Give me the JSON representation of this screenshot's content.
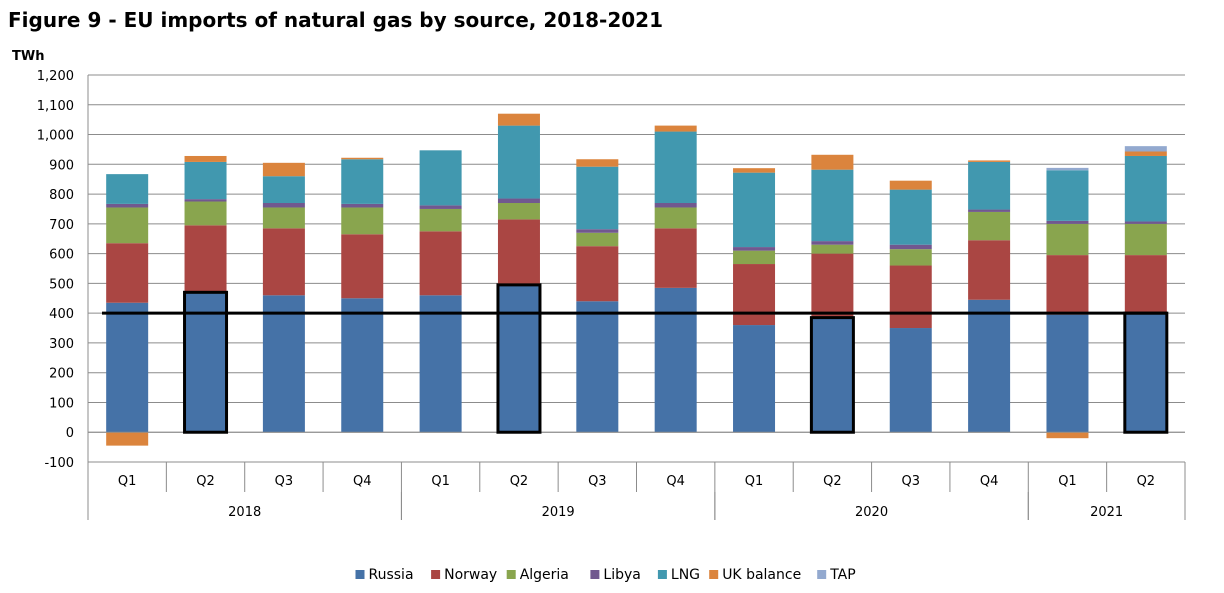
{
  "chart_data": {
    "type": "bar",
    "stacked": true,
    "title": "Figure 9 - EU imports of natural gas by source, 2018-2021",
    "ylabel": "TWh",
    "xlabel": "",
    "ylim": [
      -100,
      1200
    ],
    "yticks": [
      -100,
      0,
      100,
      200,
      300,
      400,
      500,
      600,
      700,
      800,
      900,
      1000,
      1100,
      1200
    ],
    "ytick_labels": [
      "-100",
      "0",
      "100",
      "200",
      "300",
      "400",
      "500",
      "600",
      "700",
      "800",
      "900",
      "1,000",
      "1,100",
      "1,200"
    ],
    "grid": true,
    "legend_position": "bottom",
    "categories": [
      "Q1",
      "Q2",
      "Q3",
      "Q4",
      "Q1",
      "Q2",
      "Q3",
      "Q4",
      "Q1",
      "Q2",
      "Q3",
      "Q4",
      "Q1",
      "Q2"
    ],
    "groups": [
      {
        "label": "2018",
        "count": 4
      },
      {
        "label": "2019",
        "count": 4
      },
      {
        "label": "2020",
        "count": 4
      },
      {
        "label": "2021",
        "count": 2
      }
    ],
    "series": [
      {
        "name": "Russia",
        "color": "#4572a7",
        "values": [
          435,
          470,
          460,
          450,
          460,
          495,
          440,
          485,
          360,
          385,
          350,
          445,
          395,
          400
        ]
      },
      {
        "name": "Norway",
        "color": "#aa4643",
        "values": [
          200,
          225,
          225,
          215,
          215,
          220,
          185,
          200,
          205,
          215,
          210,
          200,
          200,
          195
        ]
      },
      {
        "name": "Algeria",
        "color": "#89a54e",
        "values": [
          120,
          80,
          70,
          90,
          75,
          55,
          45,
          70,
          45,
          30,
          55,
          95,
          105,
          105
        ]
      },
      {
        "name": "Libya",
        "color": "#71588f",
        "values": [
          12,
          8,
          15,
          12,
          12,
          15,
          12,
          15,
          12,
          12,
          15,
          8,
          10,
          8
        ]
      },
      {
        "name": "LNG",
        "color": "#4198af",
        "values": [
          100,
          125,
          90,
          150,
          185,
          245,
          210,
          240,
          250,
          240,
          185,
          160,
          170,
          220
        ]
      },
      {
        "name": "UK balance",
        "color": "#db843d",
        "values": [
          -45,
          20,
          45,
          5,
          0,
          40,
          25,
          20,
          15,
          50,
          30,
          5,
          -20,
          15
        ]
      },
      {
        "name": "TAP",
        "color": "#93a9cf",
        "values": [
          0,
          0,
          0,
          0,
          0,
          0,
          0,
          0,
          0,
          0,
          0,
          0,
          8,
          18
        ]
      }
    ],
    "reference_line": {
      "value": 400
    },
    "highlighted_bars": [
      "2018 Q2",
      "2019 Q2",
      "2020 Q2",
      "2021 Q2"
    ]
  }
}
